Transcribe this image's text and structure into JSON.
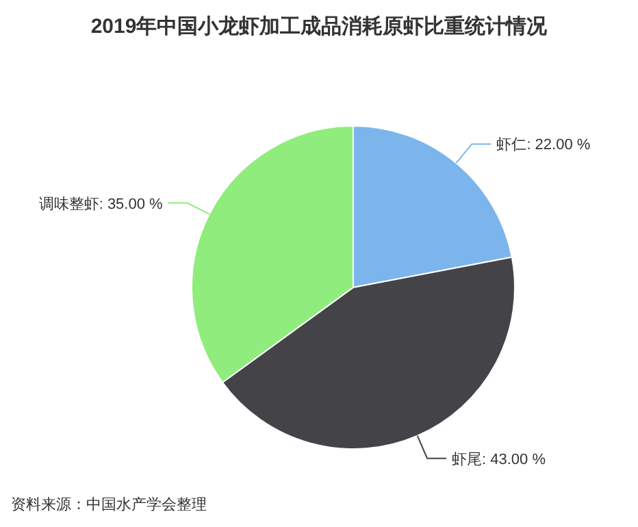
{
  "chart_data": {
    "type": "pie",
    "title": "2019年中国小龙虾加工成品消耗原虾比重统计情况",
    "categories": [
      "虾仁",
      "虾尾",
      "调味整虾"
    ],
    "values": [
      22,
      43,
      35
    ],
    "colors": [
      "#7cb5ec",
      "#434348",
      "#90ed7d"
    ],
    "value_labels": [
      "22.00 %",
      "43.00 %",
      "35.00 %"
    ],
    "annotations": [
      "资料来源：中国水产学会整理"
    ]
  }
}
